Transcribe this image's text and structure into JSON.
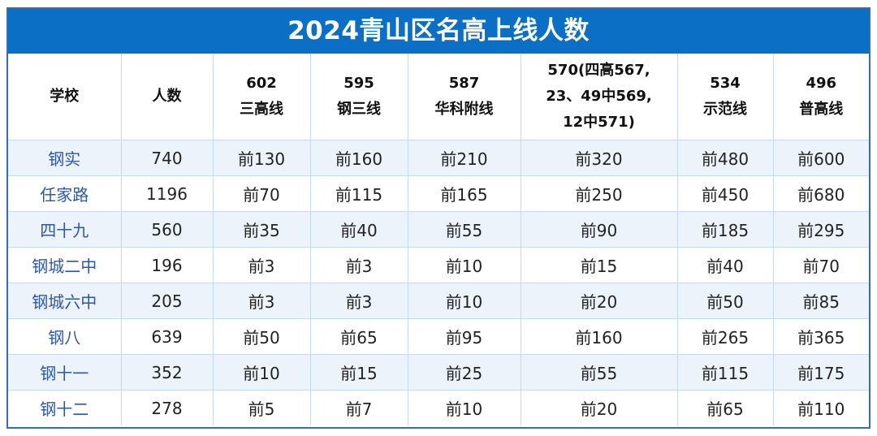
{
  "title": "2024青山区名高上线人数",
  "headers": [
    {
      "lines": [
        "学校"
      ]
    },
    {
      "lines": [
        "人数"
      ]
    },
    {
      "lines": [
        "602",
        "三高线"
      ]
    },
    {
      "lines": [
        "595",
        "钢三线"
      ]
    },
    {
      "lines": [
        "587",
        "华科附线"
      ]
    },
    {
      "lines": [
        "570(四高567,",
        "23、49中569,",
        "12中571)"
      ]
    },
    {
      "lines": [
        "534",
        "示范线"
      ]
    },
    {
      "lines": [
        "496",
        "普高线"
      ]
    }
  ],
  "rows": [
    [
      "钢实",
      "740",
      "前130",
      "前160",
      "前210",
      "前320",
      "前480",
      "前600"
    ],
    [
      "任家路",
      "1196",
      "前70",
      "前115",
      "前165",
      "前250",
      "前450",
      "前680"
    ],
    [
      "四十九",
      "560",
      "前35",
      "前40",
      "前55",
      "前90",
      "前185",
      "前295"
    ],
    [
      "钢城二中",
      "196",
      "前3",
      "前3",
      "前10",
      "前15",
      "前40",
      "前70"
    ],
    [
      "钢城六中",
      "205",
      "前3",
      "前3",
      "前10",
      "前20",
      "前50",
      "前85"
    ],
    [
      "钢八",
      "639",
      "前50",
      "前65",
      "前95",
      "前160",
      "前265",
      "前365"
    ],
    [
      "钢十一",
      "352",
      "前10",
      "前15",
      "前25",
      "前55",
      "前115",
      "前175"
    ],
    [
      "钢十二",
      "278",
      "前5",
      "前7",
      "前10",
      "前20",
      "前65",
      "前110"
    ]
  ]
}
